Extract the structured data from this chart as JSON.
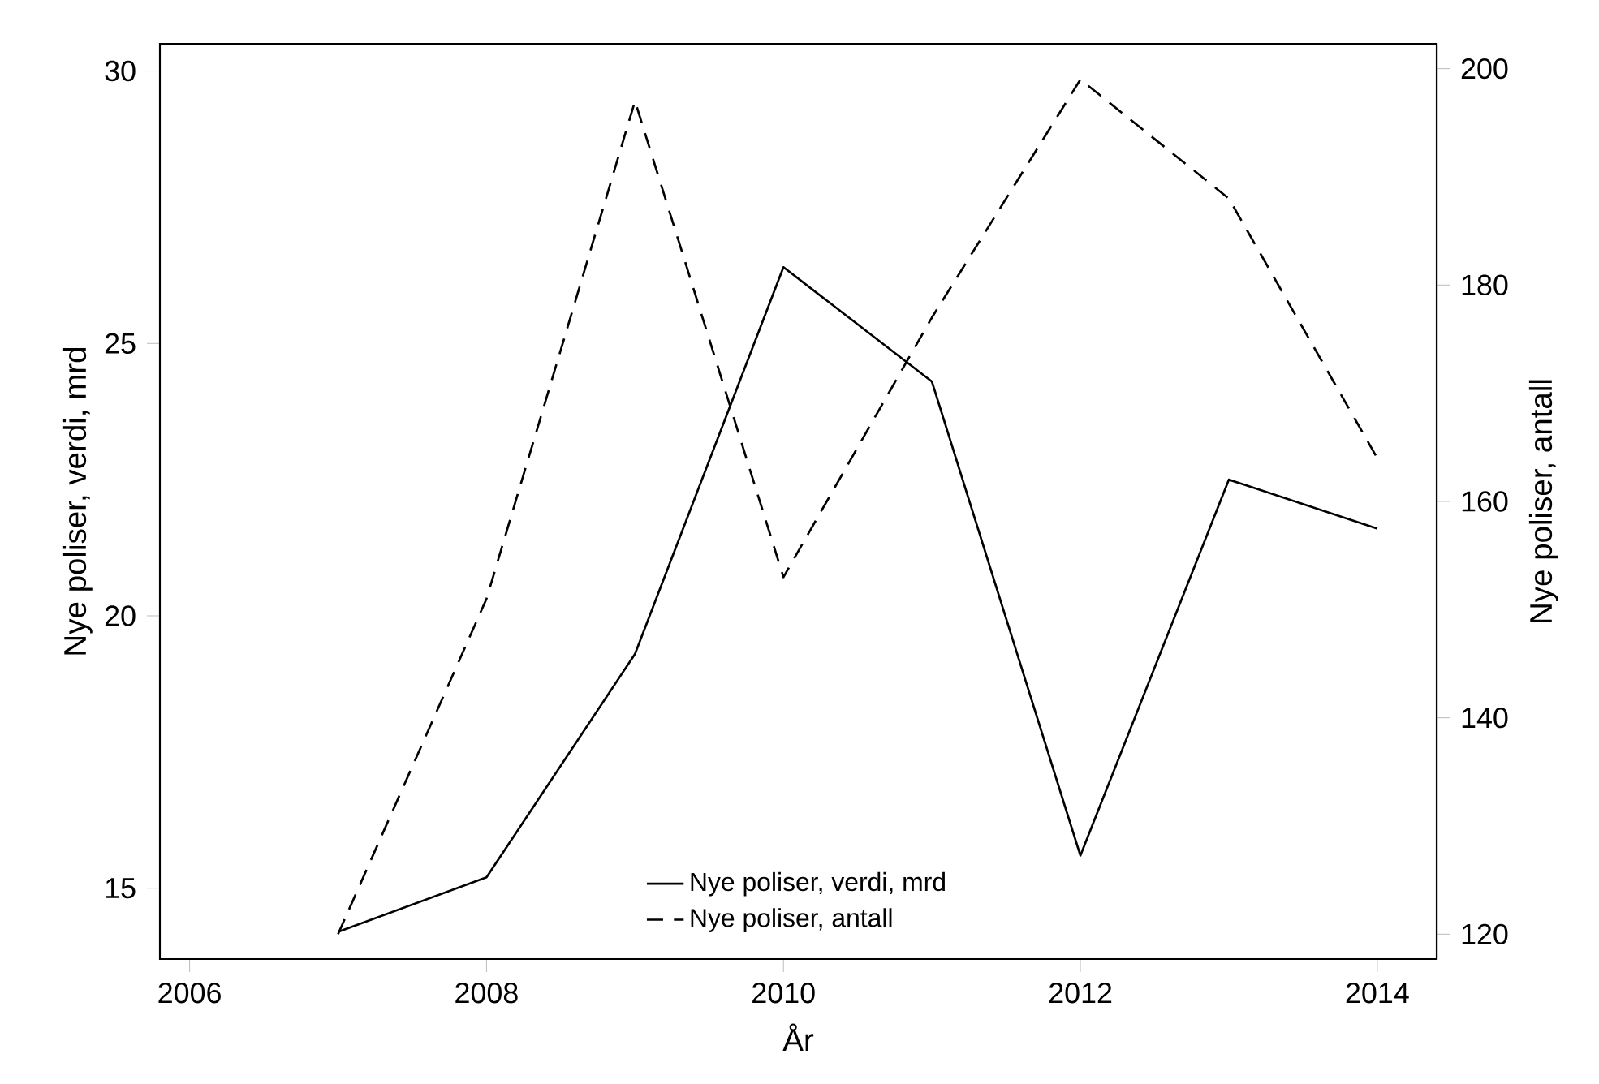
{
  "chart_data": {
    "type": "line",
    "xlabel": "År",
    "ylabel": "Nye poliser, verdi, mrd",
    "y2label": "Nye poliser, antall",
    "x": [
      2007,
      2008,
      2009,
      2010,
      2011,
      2012,
      2013,
      2014
    ],
    "series": [
      {
        "name": "Nye poliser, verdi, mrd",
        "color": "#000000",
        "line_style": "solid",
        "values": [
          14.2,
          15.2,
          19.3,
          26.4,
          24.3,
          15.6,
          22.5,
          21.6
        ]
      },
      {
        "name": "Nye poliser, antall",
        "color": "#000000",
        "line_style": "dashed",
        "axis": "y2",
        "values": [
          120,
          151,
          197,
          153,
          177,
          199,
          188,
          164
        ]
      }
    ],
    "xlim": [
      2005.8,
      2014.4
    ],
    "xticks": [
      2006,
      2008,
      2010,
      2012,
      2014
    ],
    "ylim": [
      13.7,
      30.5
    ],
    "yticks": [
      15,
      20,
      25,
      30
    ],
    "y2lim": [
      117.7,
      202.3
    ],
    "y2ticks": [
      120,
      140,
      160,
      180,
      200
    ],
    "marker": "none",
    "legend": "bottom"
  }
}
